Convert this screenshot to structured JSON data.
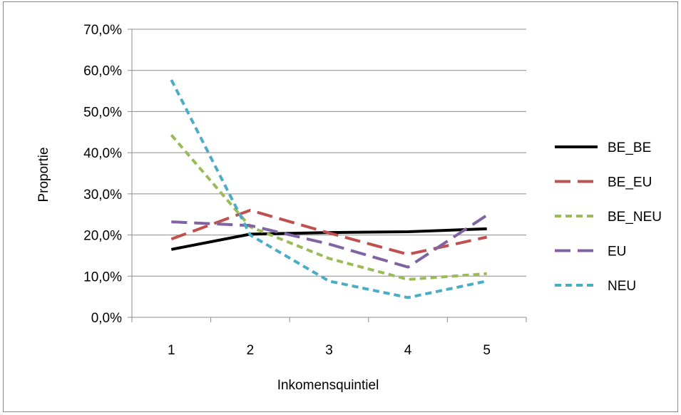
{
  "chart_data": {
    "type": "line",
    "title": "",
    "xlabel": "Inkomensquintiel",
    "ylabel": "Proportie",
    "categories": [
      "1",
      "2",
      "3",
      "4",
      "5"
    ],
    "y_ticks": [
      "0,0%",
      "10,0%",
      "20,0%",
      "30,0%",
      "40,0%",
      "50,0%",
      "60,0%",
      "70,0%"
    ],
    "ylim": [
      0,
      70
    ],
    "grid": "horizontal",
    "legend_position": "right",
    "series": [
      {
        "name": "BE_BE",
        "color": "#000000",
        "dash": "solid",
        "values": [
          16.5,
          20.2,
          20.6,
          20.8,
          21.5
        ]
      },
      {
        "name": "BE_EU",
        "color": "#c0504d",
        "dash": "long-dash",
        "values": [
          19.0,
          26.0,
          20.5,
          15.3,
          19.5
        ]
      },
      {
        "name": "BE_NEU",
        "color": "#9bbb59",
        "dash": "short-dash",
        "values": [
          44.3,
          22.0,
          14.3,
          9.2,
          10.6
        ]
      },
      {
        "name": "EU",
        "color": "#8064a2",
        "dash": "long-dash",
        "values": [
          23.2,
          22.3,
          17.8,
          12.2,
          24.8
        ]
      },
      {
        "name": "NEU",
        "color": "#4bacc6",
        "dash": "short-dash",
        "values": [
          57.7,
          20.0,
          8.8,
          4.8,
          8.8
        ]
      }
    ]
  }
}
